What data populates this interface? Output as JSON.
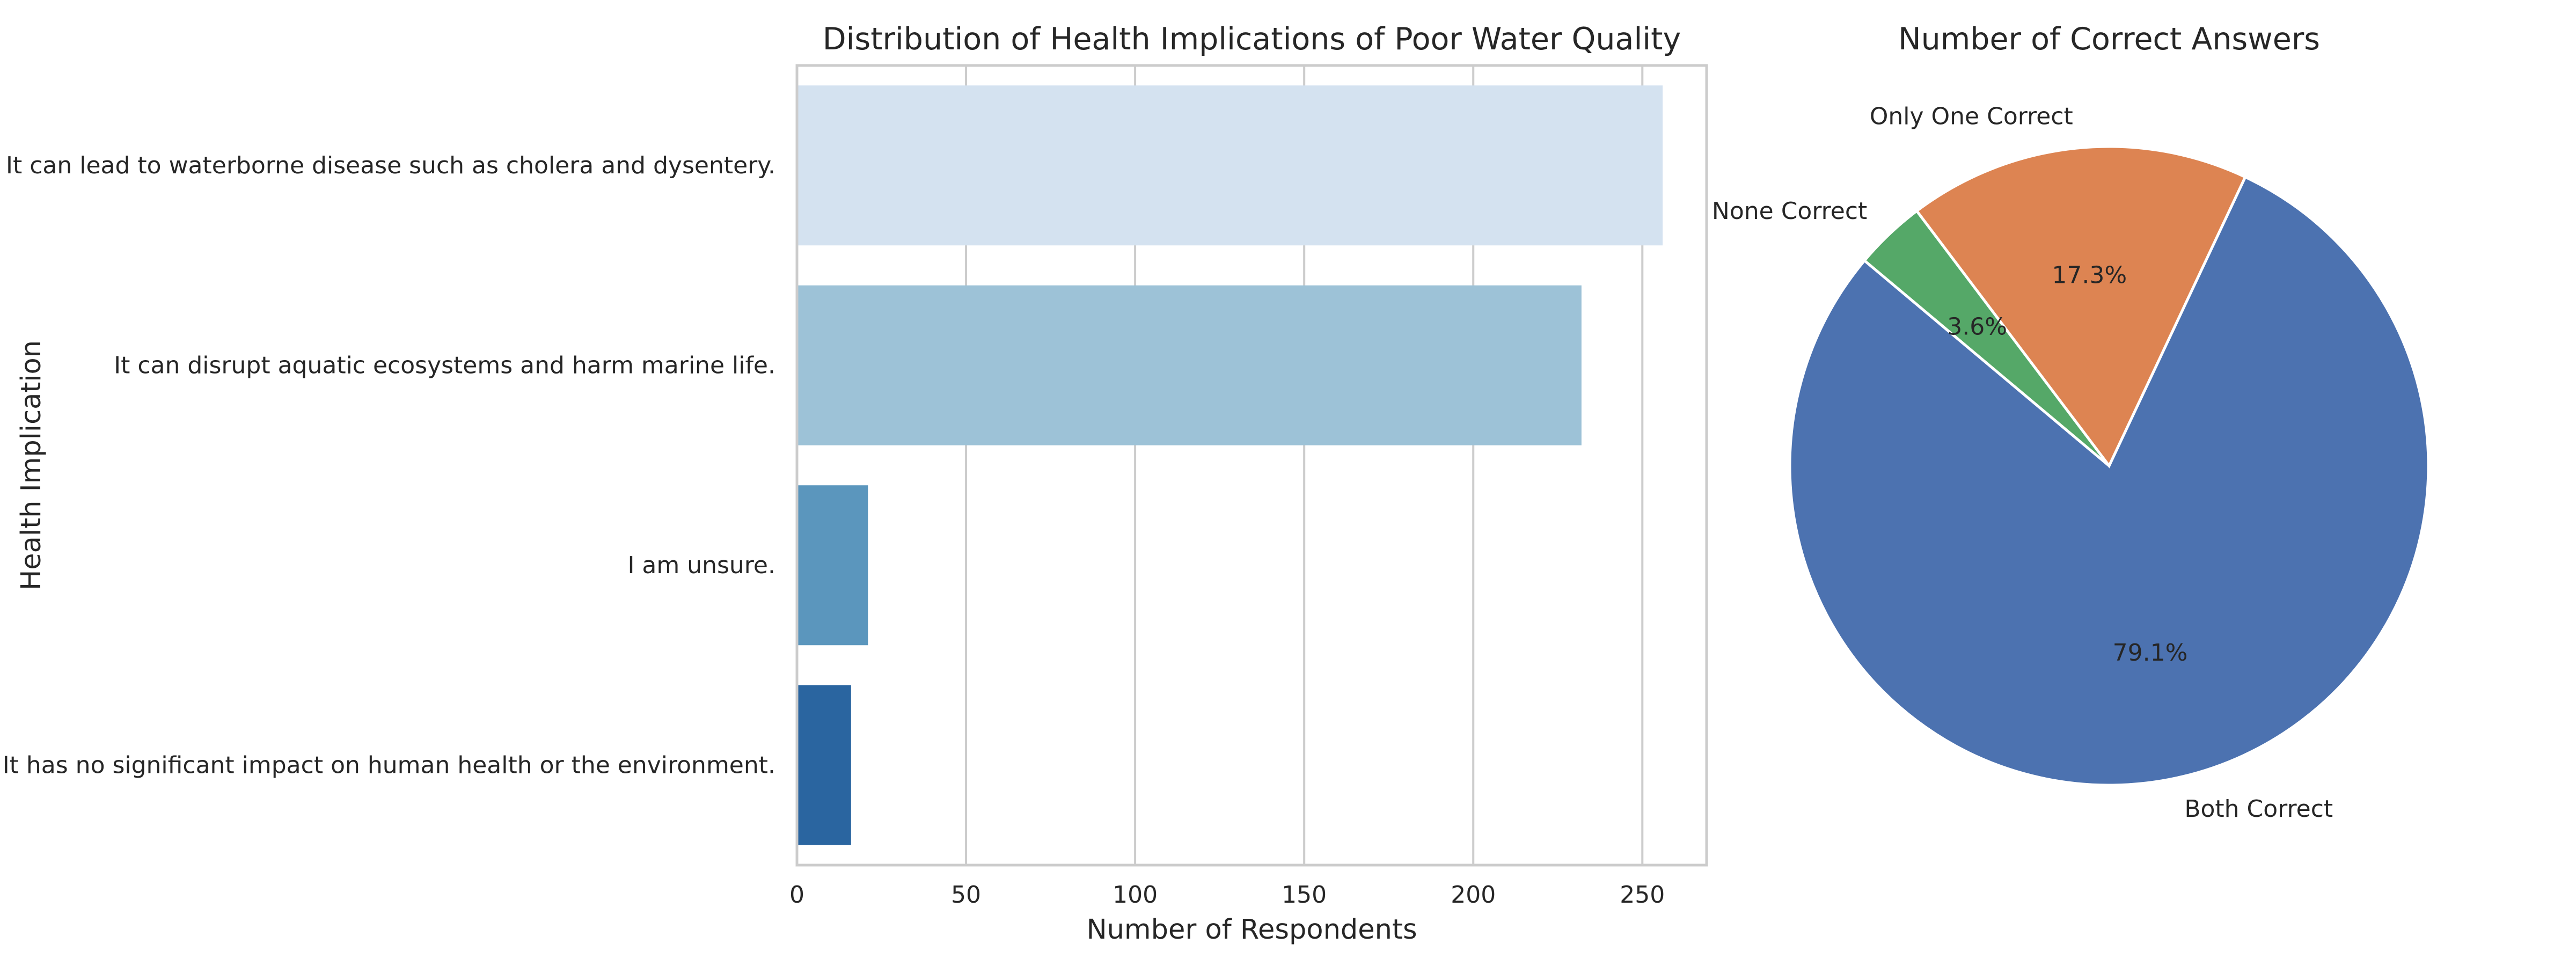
{
  "chart_data": [
    {
      "type": "bar",
      "orientation": "horizontal",
      "title": "Distribution of Health Implications of Poor Water Quality",
      "xlabel": "Number of Respondents",
      "ylabel": "Health Implication",
      "categories": [
        "It can lead to waterborne disease such as cholera and dysentery.",
        "It can disrupt aquatic ecosystems and harm marine life.",
        "I am unsure.",
        "It has no significant impact on human health or the environment."
      ],
      "values": [
        256,
        232,
        21,
        16
      ],
      "colors": [
        "#d4e2f0",
        "#9dc2d7",
        "#5b96bd",
        "#2a65a0"
      ],
      "xlim": [
        0,
        269
      ],
      "xticks": [
        0,
        50,
        100,
        150,
        200,
        250
      ],
      "grid": "x",
      "grid_color": "#cccccc"
    },
    {
      "type": "pie",
      "title": "Number of Correct Answers",
      "labels": [
        "Both Correct",
        "Only One Correct",
        "None Correct"
      ],
      "values": [
        79.1,
        17.3,
        3.6
      ],
      "pct_labels": [
        "79.1%",
        "17.3%",
        "3.6%"
      ],
      "colors": [
        "#4c72b0",
        "#dd8452",
        "#55a868"
      ],
      "start_angle": 140,
      "counterclock": true
    }
  ]
}
